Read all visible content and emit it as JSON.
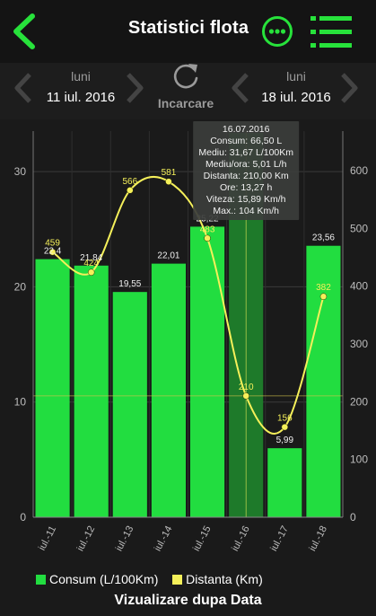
{
  "header": {
    "title": "Statistici flota"
  },
  "date_bar": {
    "start": {
      "day_name": "luni",
      "date": "11 iul. 2016"
    },
    "end": {
      "day_name": "luni",
      "date": "18 iul. 2016"
    },
    "reload_label": "Incarcare"
  },
  "tooltip": {
    "lines": [
      "16.07.2016",
      "Consum: 66,50 L",
      "Mediu: 31,67 L/100Km",
      "Mediu/ora: 5,01 L/h",
      "Distanta: 210,00 Km",
      "Ore: 13,27 h",
      "Viteza: 15,89 Km/h",
      "Max.: 104 Km/h"
    ]
  },
  "legend": {
    "consum": "Consum (L/100Km)",
    "distanta": "Distanta (Km)"
  },
  "footer": "Vizualizare dupa Data",
  "colors": {
    "accent": "#27e23b",
    "bar": "#22dd40",
    "bar_selected": "#1e7a2a",
    "line": "#f5f05a"
  },
  "chart_data": {
    "type": "bar",
    "categories": [
      "iul.-11",
      "iul.-12",
      "iul.-13",
      "iul.-14",
      "iul.-15",
      "iul.-16",
      "iul.-17",
      "iul.-18"
    ],
    "series": [
      {
        "name": "Consum (L/100Km)",
        "type": "bar",
        "axis": "left",
        "values": [
          22.4,
          21.84,
          19.55,
          22.01,
          25.22,
          31.67,
          5.99,
          23.56
        ],
        "labels": [
          "22,4",
          "21,84",
          "19,55",
          "22,01",
          "25,22",
          "",
          "5,99",
          "23,56"
        ]
      },
      {
        "name": "Distanta (Km)",
        "type": "line",
        "axis": "right",
        "values": [
          459,
          424,
          566,
          581,
          483,
          210,
          156,
          382
        ],
        "labels": [
          "459",
          "424",
          "566",
          "581",
          "483",
          "210",
          "156",
          "382"
        ]
      }
    ],
    "y_left": {
      "ticks": [
        0,
        10,
        20,
        30
      ],
      "range": [
        0,
        35
      ]
    },
    "y_right": {
      "ticks": [
        0,
        100,
        200,
        300,
        400,
        500,
        600
      ],
      "range": [
        0,
        600
      ]
    },
    "selected_index": 5,
    "legend_position": "bottom-left"
  }
}
